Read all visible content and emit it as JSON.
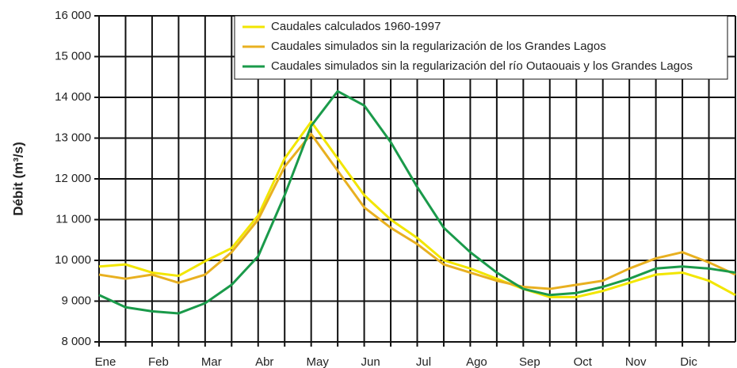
{
  "chart_data": {
    "type": "line",
    "ylabel": "Débit (m³/s)",
    "x": [
      0,
      0.5,
      1,
      1.5,
      2,
      2.5,
      3,
      3.5,
      4,
      4.5,
      5,
      5.5,
      6,
      6.5,
      7,
      7.5,
      8,
      8.5,
      9,
      9.5,
      10,
      10.5,
      11,
      11.5,
      12
    ],
    "series": [
      {
        "name": "Caudales calculados 1960-1997",
        "color": "#f2e600",
        "values": [
          9850,
          9900,
          9700,
          9620,
          9980,
          10300,
          11100,
          12500,
          13400,
          12500,
          11600,
          11000,
          10550,
          10000,
          9800,
          9550,
          9300,
          9100,
          9100,
          9250,
          9450,
          9650,
          9700,
          9500,
          9150
        ]
      },
      {
        "name": "Caudales simulados sin la regularización de los Grandes Lagos",
        "color": "#e8b020",
        "values": [
          9650,
          9550,
          9650,
          9450,
          9650,
          10200,
          11000,
          12300,
          13100,
          12200,
          11300,
          10800,
          10400,
          9900,
          9700,
          9500,
          9350,
          9300,
          9400,
          9500,
          9800,
          10050,
          10200,
          9950,
          9650
        ]
      },
      {
        "name": "Caudales simulados sin la regularización del río Outaouais y los Grandes Lagos",
        "color": "#1a9a4a",
        "values": [
          9150,
          8850,
          8750,
          8700,
          8950,
          9400,
          10100,
          11600,
          13300,
          14150,
          13800,
          12900,
          11800,
          10800,
          10200,
          9700,
          9300,
          9150,
          9200,
          9350,
          9550,
          9800,
          9850,
          9800,
          9700
        ]
      }
    ],
    "xlim": [
      0,
      12
    ],
    "xticks": [
      {
        "value": 0,
        "label": "Ene"
      },
      {
        "value": 1,
        "label": "Feb"
      },
      {
        "value": 2,
        "label": "Mar"
      },
      {
        "value": 3,
        "label": "Abr"
      },
      {
        "value": 4,
        "label": "May"
      },
      {
        "value": 5,
        "label": "Jun"
      },
      {
        "value": 6,
        "label": "Jul"
      },
      {
        "value": 7,
        "label": "Ago"
      },
      {
        "value": 8,
        "label": "Sep"
      },
      {
        "value": 9,
        "label": "Oct"
      },
      {
        "value": 10,
        "label": "Nov"
      },
      {
        "value": 11,
        "label": "Dic"
      }
    ],
    "x_minor_ticks": [
      0.5,
      1.5,
      2.5,
      3.5,
      4.5,
      5.5,
      6.5,
      7.5,
      8.5,
      9.5,
      10.5,
      11.5
    ],
    "ylim": [
      8000,
      16000
    ],
    "yticks": [
      {
        "value": 8000,
        "label": "8 000"
      },
      {
        "value": 9000,
        "label": "9 000"
      },
      {
        "value": 10000,
        "label": "10 000"
      },
      {
        "value": 11000,
        "label": "11 000"
      },
      {
        "value": 12000,
        "label": "12 000"
      },
      {
        "value": 13000,
        "label": "13 000"
      },
      {
        "value": 14000,
        "label": "14 000"
      },
      {
        "value": 15000,
        "label": "15 000"
      },
      {
        "value": 16000,
        "label": "16 000"
      }
    ],
    "grid": true,
    "legend": "upper right"
  }
}
